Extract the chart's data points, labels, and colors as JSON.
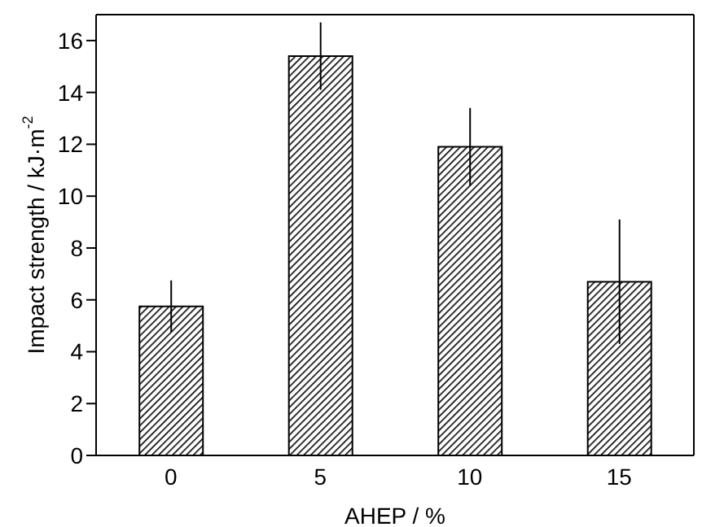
{
  "chart_data": {
    "type": "bar",
    "xlabel": "AHEP / %",
    "ylabel": "Impact strength / kJ·m$^{-2}$",
    "categories": [
      "0",
      "5",
      "10",
      "15"
    ],
    "values": [
      5.75,
      15.4,
      11.9,
      6.7
    ],
    "errors": [
      1.0,
      1.3,
      1.5,
      2.4
    ],
    "color": "#000000",
    "ylim": [
      0,
      17
    ],
    "yticks": [
      0,
      2,
      4,
      6,
      8,
      10,
      12,
      14,
      16
    ],
    "grid": false,
    "legend": false
  }
}
